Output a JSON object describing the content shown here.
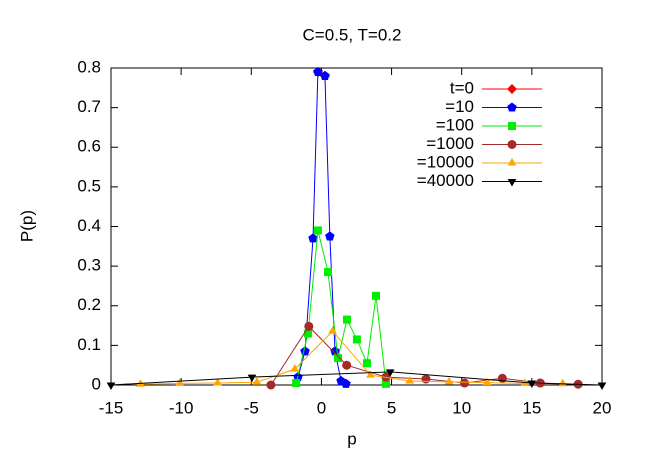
{
  "chart_data": {
    "type": "line",
    "title": "C=0.5, T=0.2",
    "xlabel": "p",
    "ylabel": "P(p)",
    "xlim": [
      -15,
      20
    ],
    "xticks": [
      -15,
      -10,
      -5,
      0,
      5,
      10,
      15,
      20
    ],
    "ylim": [
      0,
      0.8
    ],
    "yticks": [
      0,
      0.1,
      0.2,
      0.3,
      0.4,
      0.5,
      0.6,
      0.7,
      0.8
    ],
    "grid": false,
    "legend": "upper right",
    "series": [
      {
        "name": "t=0",
        "color": "#ff0000",
        "marker": "diamond",
        "x": [
          -0.25,
          0.25
        ],
        "values": [
          0.79,
          0.78
        ]
      },
      {
        "name": "=10",
        "color": "#0000ff",
        "marker": "pentagon",
        "x": [
          -1.67,
          -1.17,
          -0.6,
          -0.25,
          0.25,
          0.6,
          0.97,
          1.4,
          1.75
        ],
        "values": [
          0.02,
          0.085,
          0.37,
          0.79,
          0.78,
          0.375,
          0.085,
          0.01,
          0.003
        ]
      },
      {
        "name": "=100",
        "color": "#00ee00",
        "marker": "square",
        "x": [
          -1.8,
          -0.96,
          -0.25,
          0.47,
          1.18,
          1.82,
          2.53,
          3.25,
          3.89,
          4.6
        ],
        "values": [
          0.005,
          0.13,
          0.39,
          0.285,
          0.068,
          0.165,
          0.115,
          0.055,
          0.225,
          0.003
        ]
      },
      {
        "name": "=1000",
        "color": "#a52a2a",
        "marker": "circle",
        "x": [
          -3.6,
          -0.9,
          1.8,
          4.6,
          7.45,
          10.2,
          12.9,
          15.6,
          18.3
        ],
        "values": [
          0,
          0.148,
          0.05,
          0.02,
          0.015,
          0.005,
          0.017,
          0.005,
          0.002
        ]
      },
      {
        "name": "=10000",
        "color": "#ffa500",
        "marker": "triangle",
        "x": [
          -12.9,
          -10.1,
          -7.4,
          -4.6,
          -1.9,
          0.8,
          3.5,
          6.3,
          9.1,
          11.8,
          14.5,
          17.2
        ],
        "values": [
          0.002,
          0.004,
          0.005,
          0.007,
          0.04,
          0.136,
          0.025,
          0.01,
          0.008,
          0.006,
          0.004,
          0.003
        ]
      },
      {
        "name": "=40000",
        "color": "#000000",
        "marker": "triangle-down",
        "x": [
          -15,
          -4.95,
          4.9,
          15,
          20
        ],
        "values": [
          0,
          0.02,
          0.033,
          0.005,
          0
        ]
      }
    ]
  }
}
